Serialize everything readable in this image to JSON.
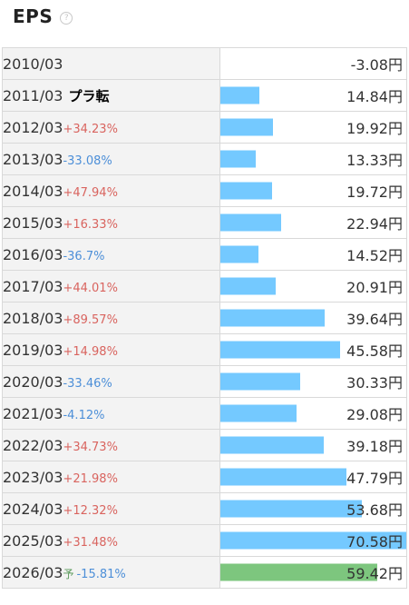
{
  "header": {
    "title": "EPS",
    "help_icon": "question-circle-icon"
  },
  "colors": {
    "actual_bar": "#74c9ff",
    "forecast_bar": "#7dc67e",
    "positive": "#d9645f",
    "negative": "#4d8fd8"
  },
  "unit": "円",
  "rows": [
    {
      "year": "2010/03",
      "change": "",
      "value": "-3.08",
      "unit": "円",
      "eps": -3.08
    },
    {
      "year": "2011/03",
      "change": "プラ転",
      "value": "14.84",
      "unit": "円",
      "eps": 14.84
    },
    {
      "year": "2012/03",
      "change": "+34.23%",
      "value": "19.92",
      "unit": "円",
      "eps": 19.92
    },
    {
      "year": "2013/03",
      "change": "-33.08%",
      "value": "13.33",
      "unit": "円",
      "eps": 13.33
    },
    {
      "year": "2014/03",
      "change": "+47.94%",
      "value": "19.72",
      "unit": "円",
      "eps": 19.72
    },
    {
      "year": "2015/03",
      "change": "+16.33%",
      "value": "22.94",
      "unit": "円",
      "eps": 22.94
    },
    {
      "year": "2016/03",
      "change": "-36.7%",
      "value": "14.52",
      "unit": "円",
      "eps": 14.52
    },
    {
      "year": "2017/03",
      "change": "+44.01%",
      "value": "20.91",
      "unit": "円",
      "eps": 20.91
    },
    {
      "year": "2018/03",
      "change": "+89.57%",
      "value": "39.64",
      "unit": "円",
      "eps": 39.64
    },
    {
      "year": "2019/03",
      "change": "+14.98%",
      "value": "45.58",
      "unit": "円",
      "eps": 45.58
    },
    {
      "year": "2020/03",
      "change": "-33.46%",
      "value": "30.33",
      "unit": "円",
      "eps": 30.33
    },
    {
      "year": "2021/03",
      "change": "-4.12%",
      "value": "29.08",
      "unit": "円",
      "eps": 29.08
    },
    {
      "year": "2022/03",
      "change": "+34.73%",
      "value": "39.18",
      "unit": "円",
      "eps": 39.18
    },
    {
      "year": "2023/03",
      "change": "+21.98%",
      "value": "47.79",
      "unit": "円",
      "eps": 47.79
    },
    {
      "year": "2024/03",
      "change": "+12.32%",
      "value": "53.68",
      "unit": "円",
      "eps": 53.68
    },
    {
      "year": "2025/03",
      "change": "+31.48%",
      "value": "70.58",
      "unit": "円",
      "eps": 70.58
    },
    {
      "year": "2026/03",
      "forecast_mark": "予",
      "change": "-15.81%",
      "value": "59.42",
      "unit": "円",
      "eps": 59.42,
      "forecast": true
    }
  ]
}
